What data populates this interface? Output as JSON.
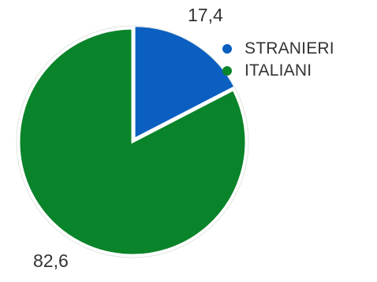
{
  "chart_data": {
    "type": "pie",
    "title": "",
    "categories": [
      "STRANIERI",
      "ITALIANI"
    ],
    "values": [
      17.4,
      82.6
    ],
    "value_labels": [
      "17,4",
      "82,6"
    ],
    "colors": [
      "#0b5fc0",
      "#0a842a"
    ],
    "start_angle": "top (12 o'clock), clockwise",
    "legend_position": "top-right"
  },
  "legend": {
    "items": [
      {
        "label": "STRANIERI",
        "color": "#0b5fc0"
      },
      {
        "label": "ITALIANI",
        "color": "#0a842a"
      }
    ]
  }
}
